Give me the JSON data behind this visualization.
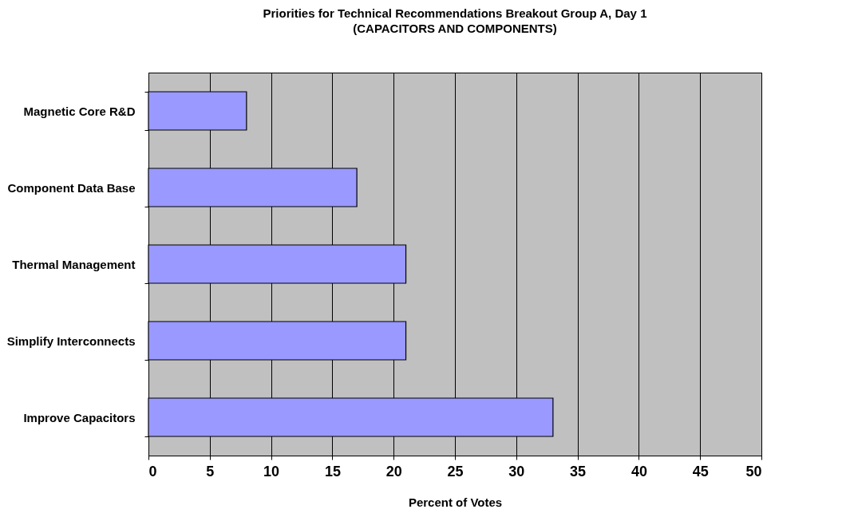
{
  "chart_data": {
    "type": "bar",
    "orientation": "horizontal",
    "title": "Priorities for Technical Recommendations Breakout Group A, Day 1",
    "subtitle": "(CAPACITORS AND COMPONENTS)",
    "xlabel": "Percent of Votes",
    "categories": [
      "Magnetic Core R&D",
      "Component Data Base",
      "Thermal Management",
      "Simplify Interconnects",
      "Improve Capacitors"
    ],
    "values": [
      8,
      17,
      21,
      21,
      33
    ],
    "color": "#9999ff",
    "xlim": [
      0,
      50
    ],
    "xticks": [
      0,
      5,
      10,
      15,
      20,
      25,
      30,
      35,
      40,
      45,
      50
    ],
    "grid": "x"
  }
}
